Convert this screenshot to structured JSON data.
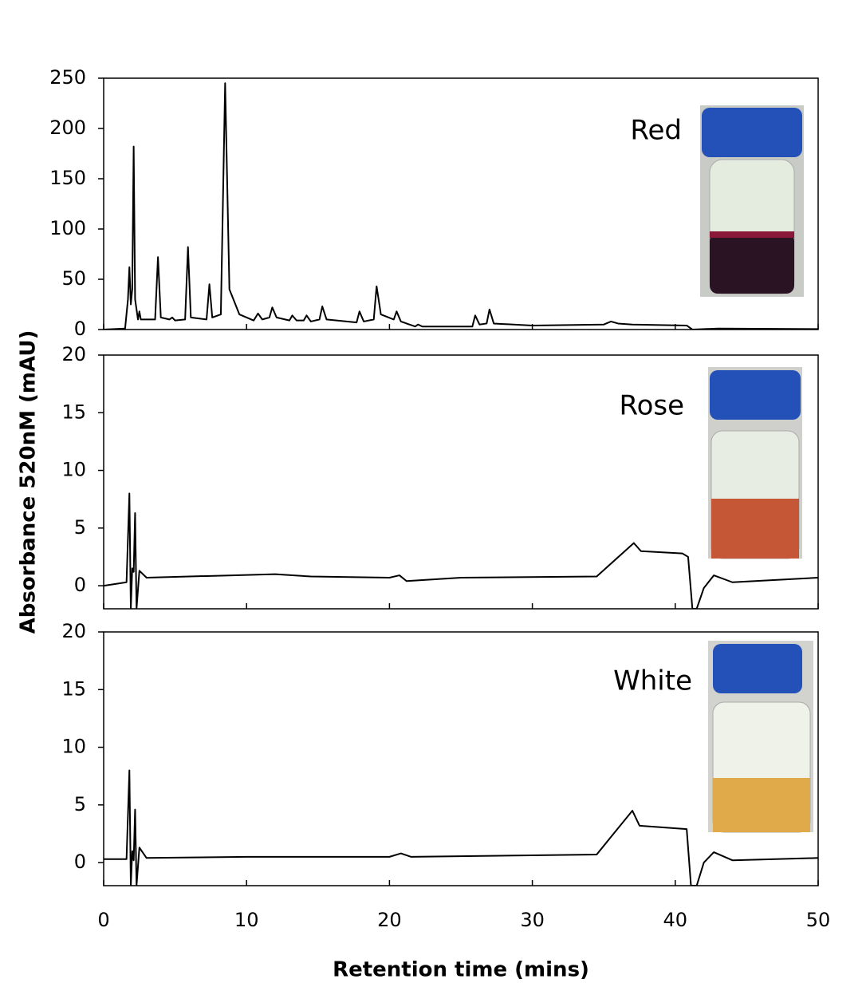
{
  "ylabel": "Absorbance 520nM (mAU)",
  "xlabel": "Retention time (mins)",
  "chart_data": [
    {
      "type": "line",
      "label": "Red",
      "xlim": [
        0,
        50
      ],
      "xticks": [
        0,
        10,
        20,
        30,
        40,
        50
      ],
      "ylim": [
        0,
        250
      ],
      "yticks": [
        0,
        50,
        100,
        150,
        200,
        250
      ],
      "series": [
        {
          "color": "#000000",
          "x": [
            0,
            1.5,
            1.7,
            1.8,
            1.9,
            2.0,
            2.1,
            2.2,
            2.4,
            2.5,
            2.6,
            3.6,
            3.8,
            4.0,
            4.6,
            4.8,
            5.0,
            5.7,
            5.9,
            6.1,
            7.2,
            7.4,
            7.6,
            8.2,
            8.5,
            8.8,
            9.5,
            10.5,
            10.8,
            11.1,
            11.6,
            11.8,
            12.1,
            13.0,
            13.2,
            13.5,
            14.0,
            14.2,
            14.5,
            15.1,
            15.3,
            15.6,
            17.7,
            17.9,
            18.2,
            18.9,
            19.1,
            19.4,
            20.3,
            20.5,
            20.8,
            21.8,
            22.0,
            22.3,
            25.8,
            26.0,
            26.3,
            26.8,
            27.0,
            27.3,
            30,
            35,
            35.5,
            36,
            37,
            40.8,
            41.2,
            43,
            50
          ],
          "values": [
            0,
            1,
            30,
            62,
            25,
            40,
            182,
            30,
            10,
            18,
            10,
            10,
            72,
            12,
            10,
            12,
            9,
            10,
            82,
            12,
            10,
            45,
            12,
            15,
            245,
            40,
            15,
            9,
            16,
            10,
            12,
            22,
            12,
            9,
            14,
            9,
            9,
            14,
            8,
            10,
            23,
            10,
            7,
            18,
            8,
            10,
            43,
            15,
            10,
            18,
            8,
            3,
            5,
            3,
            3,
            14,
            5,
            6,
            20,
            6,
            4,
            5,
            8,
            6,
            5,
            4,
            0,
            1,
            0.5
          ]
        }
      ]
    },
    {
      "type": "line",
      "label": "Rose",
      "xlim": [
        0,
        50
      ],
      "xticks": [
        0,
        10,
        20,
        30,
        40,
        50
      ],
      "ylim": [
        -2,
        20
      ],
      "yticks": [
        0,
        5,
        10,
        15,
        20
      ],
      "series": [
        {
          "color": "#000000",
          "x": [
            0,
            1.6,
            1.8,
            1.9,
            2.0,
            2.1,
            2.2,
            2.3,
            2.5,
            3,
            9,
            12,
            14.5,
            20,
            20.7,
            21.2,
            25,
            34.5,
            37.1,
            37.6,
            40.5,
            40.9,
            41.2,
            41.5,
            42,
            42.7,
            44,
            50
          ],
          "values": [
            0,
            0.3,
            8,
            -2,
            1.5,
            1.2,
            6.3,
            -2,
            1.3,
            0.7,
            0.9,
            1,
            0.8,
            0.7,
            0.9,
            0.4,
            0.7,
            0.8,
            3.7,
            3.0,
            2.8,
            2.5,
            -2,
            -2,
            -0.2,
            0.9,
            0.3,
            0.7
          ]
        }
      ]
    },
    {
      "type": "line",
      "label": "White",
      "xlim": [
        0,
        50
      ],
      "xticks": [
        0,
        10,
        20,
        30,
        40,
        50
      ],
      "ylim": [
        -2,
        20
      ],
      "yticks": [
        0,
        5,
        10,
        15,
        20
      ],
      "series": [
        {
          "color": "#000000",
          "x": [
            0,
            1.6,
            1.8,
            1.9,
            2.0,
            2.1,
            2.2,
            2.3,
            2.5,
            3,
            10,
            20,
            20.8,
            21.5,
            34.5,
            37,
            37.5,
            40.8,
            41.1,
            41.5,
            42,
            42.7,
            44,
            50
          ],
          "values": [
            0.3,
            0.3,
            8,
            -2,
            1,
            0.2,
            4.6,
            -2,
            1.3,
            0.4,
            0.5,
            0.5,
            0.8,
            0.5,
            0.7,
            4.5,
            3.2,
            2.9,
            -2,
            -2,
            0,
            0.9,
            0.2,
            0.4
          ]
        }
      ]
    }
  ]
}
